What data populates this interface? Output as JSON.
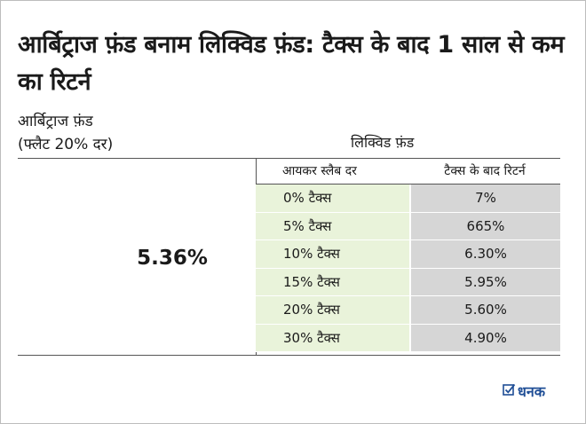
{
  "title": "आर्बिट्राज फ़ंड बनाम लिक्विड फ़ंड: टैक्स के बाद 1 साल से कम का रिटर्न",
  "arbitrage": {
    "label_line1": "आर्बिट्राज फ़ंड",
    "label_line2": "(फ्लैट 20% दर)",
    "value": "5.36%"
  },
  "liquid": {
    "header": "लिक्विड फ़ंड",
    "col_slab": "आयकर स्लैब दर",
    "col_return": "टैक्स के बाद रिटर्न",
    "rows": [
      {
        "slab": "0% टैक्स",
        "ret": "7%"
      },
      {
        "slab": "5% टैक्स",
        "ret": "665%"
      },
      {
        "slab": "10% टैक्स",
        "ret": "6.30%"
      },
      {
        "slab": "15% टैक्स",
        "ret": "5.95%"
      },
      {
        "slab": "20%  टैक्स",
        "ret": "5.60%"
      },
      {
        "slab": "30%  टैक्स",
        "ret": "4.90%"
      }
    ]
  },
  "logo": {
    "text": "धनक",
    "icon": "check-box-icon"
  },
  "colors": {
    "slab_bg": "#e9f3da",
    "return_bg": "#d6d6d6",
    "logo": "#1f4e96"
  }
}
